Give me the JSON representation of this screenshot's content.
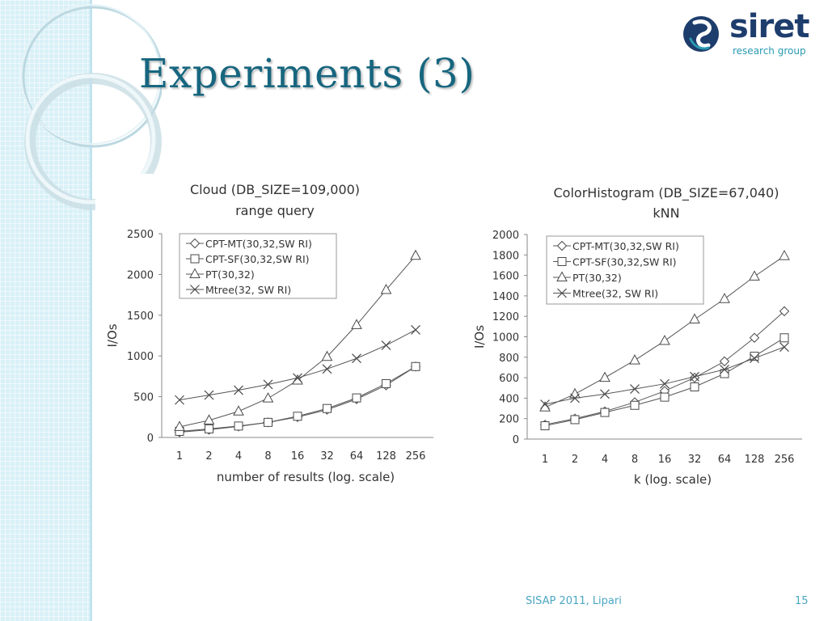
{
  "slide": {
    "title": "Experiments (3)",
    "logo_text": "siret",
    "logo_subtitle": "research group",
    "footer_left": "SISAP 2011, Lipari",
    "page_number": "15",
    "colors": {
      "title": "#17667f",
      "accent": "#2a9ab2",
      "logo": "#1d3d6c",
      "strip": "#d9f0f7"
    }
  },
  "chart_data": [
    {
      "type": "line",
      "title": "Cloud (DB_SIZE=109,000)",
      "subtitle": "range query",
      "xlabel": "number of results (log. scale)",
      "ylabel": "I/Os",
      "categories": [
        "1",
        "2",
        "4",
        "8",
        "16",
        "32",
        "64",
        "128",
        "256"
      ],
      "ylim": [
        0,
        2500
      ],
      "yticks": [
        0,
        500,
        1000,
        1500,
        2000,
        2500
      ],
      "legend_position": "top-left",
      "grid": false,
      "series": [
        {
          "name": "CPT-MT(30,32,SW RI)",
          "marker": "diamond",
          "values": [
            65,
            95,
            135,
            185,
            250,
            340,
            470,
            640,
            870
          ]
        },
        {
          "name": "CPT-SF(30,32,SW RI)",
          "marker": "square",
          "values": [
            75,
            105,
            140,
            185,
            260,
            355,
            485,
            660,
            870
          ]
        },
        {
          "name": "PT(30,32)",
          "marker": "triangle",
          "values": [
            130,
            210,
            320,
            480,
            700,
            990,
            1380,
            1810,
            2230
          ]
        },
        {
          "name": "Mtree(32, SW RI)",
          "marker": "x",
          "values": [
            460,
            520,
            580,
            650,
            730,
            840,
            970,
            1130,
            1320
          ]
        }
      ]
    },
    {
      "type": "line",
      "title": "ColorHistogram (DB_SIZE=67,040)",
      "subtitle": "kNN",
      "xlabel": "k (log. scale)",
      "ylabel": "I/Os",
      "categories": [
        "1",
        "2",
        "4",
        "8",
        "16",
        "32",
        "64",
        "128",
        "256"
      ],
      "ylim": [
        0,
        2000
      ],
      "yticks": [
        0,
        200,
        400,
        600,
        800,
        1000,
        1200,
        1400,
        1600,
        1800,
        2000
      ],
      "legend_position": "top-left",
      "grid": false,
      "series": [
        {
          "name": "CPT-MT(30,32,SW RI)",
          "marker": "diamond",
          "values": [
            140,
            200,
            270,
            360,
            470,
            600,
            760,
            990,
            1250
          ]
        },
        {
          "name": "CPT-SF(30,32,SW RI)",
          "marker": "square",
          "values": [
            130,
            190,
            260,
            330,
            410,
            510,
            640,
            810,
            990
          ]
        },
        {
          "name": "PT(30,32)",
          "marker": "triangle",
          "values": [
            310,
            440,
            600,
            770,
            960,
            1170,
            1370,
            1590,
            1790
          ]
        },
        {
          "name": "Mtree(32, SW RI)",
          "marker": "x",
          "values": [
            340,
            400,
            440,
            490,
            540,
            610,
            680,
            790,
            900
          ]
        }
      ]
    }
  ]
}
